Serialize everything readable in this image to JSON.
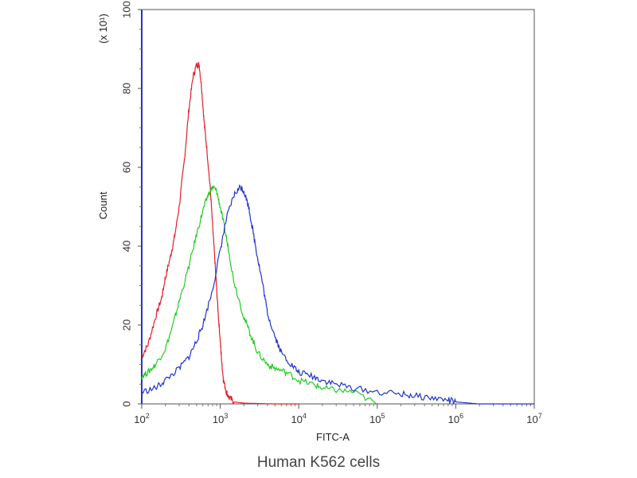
{
  "chart_data": {
    "type": "line",
    "title": "",
    "xlabel": "FITC-A",
    "ylabel": "Count",
    "multiplier_label": "(x 10¹)",
    "caption": "Human K562 cells",
    "x_scale": "log",
    "xlim": [
      100,
      10000000
    ],
    "ylim": [
      0,
      100
    ],
    "x_ticks": [
      {
        "value": 100,
        "base": "10",
        "exp": "2"
      },
      {
        "value": 1000,
        "base": "10",
        "exp": "3"
      },
      {
        "value": 10000,
        "base": "10",
        "exp": "4"
      },
      {
        "value": 100000,
        "base": "10",
        "exp": "5"
      },
      {
        "value": 1000000,
        "base": "10",
        "exp": "6"
      },
      {
        "value": 10000000,
        "base": "10",
        "exp": "7"
      }
    ],
    "y_ticks": [
      0,
      20,
      40,
      60,
      80,
      100
    ],
    "grid": false,
    "series": [
      {
        "color": "#e0202a",
        "x": [
          100,
          120,
          150,
          180,
          200,
          230,
          260,
          300,
          350,
          400,
          450,
          500,
          540,
          580,
          620,
          680,
          750,
          800,
          850,
          900,
          950,
          1000,
          1050,
          1100,
          1200,
          1300,
          1500,
          2000,
          3000,
          5000,
          10000
        ],
        "y": [
          12,
          15,
          22,
          27,
          32,
          37,
          42,
          50,
          62,
          75,
          83,
          86,
          86,
          80,
          72,
          64,
          54,
          45,
          37,
          29,
          22,
          16,
          10,
          6,
          3,
          1.5,
          0.5,
          0.2,
          0.1,
          0,
          0
        ]
      },
      {
        "color": "#22cc22",
        "x": [
          100,
          120,
          150,
          200,
          250,
          300,
          400,
          500,
          600,
          700,
          800,
          900,
          1000,
          1150,
          1300,
          1500,
          2000,
          2500,
          3000,
          4000,
          5000,
          7000,
          10000,
          15000,
          20000,
          30000,
          50000,
          100000
        ],
        "y": [
          7,
          8,
          10,
          14,
          20,
          26,
          35,
          43,
          49,
          53,
          55,
          54,
          50,
          44,
          38,
          31,
          22,
          17,
          13,
          10,
          9,
          8,
          6,
          5,
          4,
          3.5,
          3,
          0
        ]
      },
      {
        "color": "#2233cc",
        "x": [
          100,
          150,
          200,
          300,
          400,
          500,
          600,
          800,
          1000,
          1200,
          1500,
          1800,
          2000,
          2300,
          2600,
          3000,
          3500,
          4000,
          5000,
          6000,
          8000,
          10000,
          15000,
          20000,
          30000,
          50000,
          100000,
          200000,
          300000,
          500000,
          800000,
          1000000,
          2000000,
          10000000
        ],
        "y": [
          3,
          4,
          6,
          9,
          12,
          16,
          20,
          29,
          39,
          47,
          53,
          55,
          54,
          50,
          44,
          37,
          30,
          23,
          17,
          13,
          10,
          8,
          7,
          6,
          5,
          4,
          3,
          2.5,
          2,
          1.5,
          1,
          0.5,
          0,
          0
        ]
      }
    ]
  }
}
